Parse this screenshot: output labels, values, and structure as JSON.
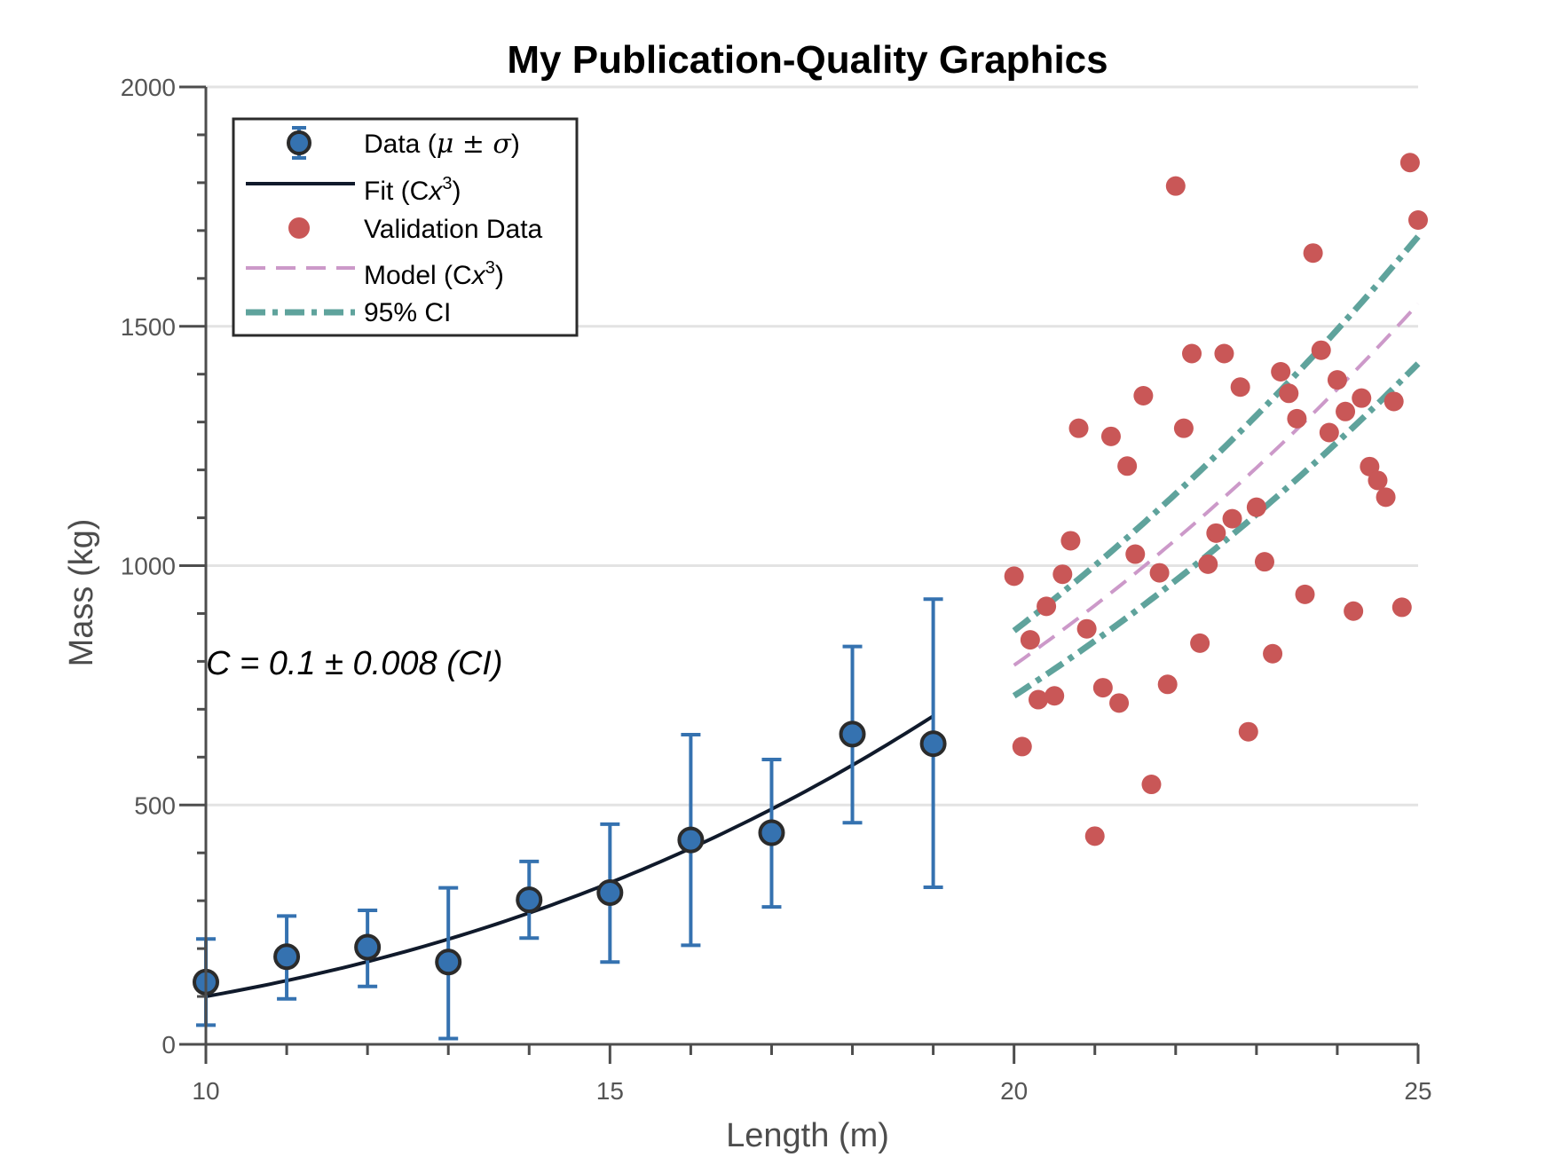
{
  "chart_data": {
    "type": "scatter",
    "title": "My Publication-Quality Graphics",
    "xlabel": "Length (m)",
    "ylabel": "Mass (kg)",
    "xlim": [
      10,
      25
    ],
    "ylim": [
      0,
      2000
    ],
    "x_ticks": [
      10,
      15,
      20,
      25
    ],
    "y_ticks": [
      0,
      500,
      1000,
      1500,
      2000
    ],
    "x_tick_labels": [
      "10",
      "15",
      "20",
      "25"
    ],
    "y_tick_labels": [
      "0",
      "500",
      "1000",
      "1500",
      "2000"
    ],
    "grid": "horizontal",
    "legend_position": "top-left",
    "annotation": "C = 0.1 ± 0.008 (CI)",
    "colors": {
      "data": "#3572b0",
      "fit": "#101a2b",
      "validation": "#c95757",
      "model": "#cc99c9",
      "ci": "#5fa39c",
      "grid": "#e3e3e3",
      "axis": "#4d4d4d"
    },
    "series": [
      {
        "name": "Data (μ ± σ)",
        "kind": "errorbar",
        "x": [
          10,
          11,
          12,
          13,
          14,
          15,
          16,
          17,
          18,
          19
        ],
        "y": [
          130,
          183,
          203,
          172,
          302,
          317,
          427,
          442,
          648,
          628
        ],
        "err_low": [
          90,
          88,
          82,
          160,
          80,
          145,
          220,
          155,
          185,
          300
        ],
        "err_high": [
          90,
          85,
          77,
          155,
          80,
          143,
          220,
          153,
          183,
          302
        ]
      },
      {
        "name": "Fit (Cx³)",
        "kind": "curve",
        "coef": 0.1,
        "x_range": [
          10,
          19
        ]
      },
      {
        "name": "Validation Data",
        "kind": "points",
        "x": [
          20.0,
          20.1,
          20.2,
          20.3,
          20.4,
          20.5,
          20.6,
          20.7,
          20.8,
          20.9,
          21.0,
          21.1,
          21.2,
          21.3,
          21.4,
          21.5,
          21.6,
          21.7,
          21.8,
          21.9,
          22.0,
          22.1,
          22.2,
          22.3,
          22.4,
          22.5,
          22.6,
          22.7,
          22.8,
          22.9,
          23.0,
          23.1,
          23.2,
          23.3,
          23.4,
          23.5,
          23.6,
          23.7,
          23.8,
          23.9,
          24.0,
          24.1,
          24.2,
          24.3,
          24.4,
          24.5,
          24.6,
          24.7,
          24.8,
          24.9,
          25.0
        ],
        "y": [
          978,
          622,
          845,
          720,
          915,
          728,
          982,
          1052,
          1287,
          868,
          435,
          745,
          1270,
          713,
          1208,
          1024,
          1355,
          543,
          985,
          752,
          1793,
          1287,
          1443,
          838,
          1003,
          1068,
          1443,
          1098,
          1373,
          653,
          1122,
          1008,
          816,
          1405,
          1360,
          1307,
          940,
          1653,
          1450,
          1278,
          1388,
          1322,
          905,
          1350,
          1207,
          1178,
          1143,
          1343,
          913,
          1842,
          1722
        ]
      },
      {
        "name": "Model (Cx³)",
        "kind": "curve",
        "coef": 0.099,
        "x_range": [
          20,
          25
        ]
      },
      {
        "name": "95% CI",
        "kind": "band",
        "coef_low": 0.091,
        "coef_high": 0.108,
        "x_range": [
          20,
          25
        ]
      }
    ]
  },
  "legend": {
    "data_label": "Data (",
    "data_math": "μ ± σ",
    "data_close": ")",
    "fit_label": "Fit (C",
    "model_label": "Model (C",
    "x_var": "x",
    "cube": "3",
    "close_paren": ")",
    "validation_label": "Validation Data",
    "ci_label": "95% CI"
  }
}
